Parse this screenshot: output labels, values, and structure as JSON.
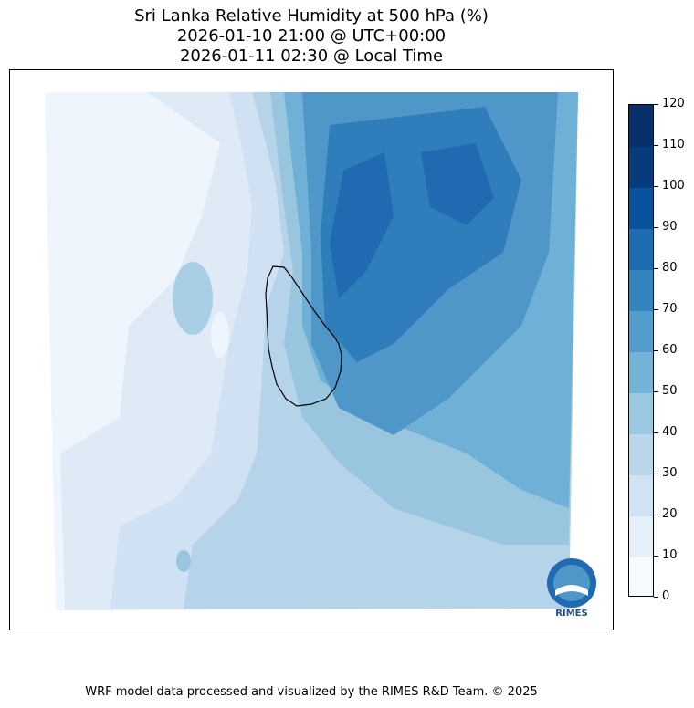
{
  "title": {
    "line1": "Sri Lanka Relative Humidity at 500 hPa (%)",
    "line2": "2026-01-10 21:00 @ UTC+00:00",
    "line3": "2026-01-11 02:30 @ Local Time"
  },
  "colorbar": {
    "unit": "%",
    "levels": [
      0,
      10,
      20,
      30,
      40,
      50,
      60,
      70,
      80,
      90,
      100,
      110,
      120
    ],
    "colors": [
      "#f7fbff",
      "#e4eff9",
      "#d1e3f3",
      "#bad6eb",
      "#9ac8e1",
      "#73b3d8",
      "#529dcc",
      "#3484bf",
      "#1d6cb1",
      "#08519c",
      "#083b7b",
      "#08306b"
    ]
  },
  "map": {
    "region": "Sri Lanka",
    "variable": "Relative Humidity",
    "level": "500 hPa"
  },
  "logo": {
    "text": "RIMES",
    "icon": "rimes-logo-icon"
  },
  "footer": {
    "credit": "WRF model data processed and visualized by the RIMES R&D Team. © 2025"
  }
}
